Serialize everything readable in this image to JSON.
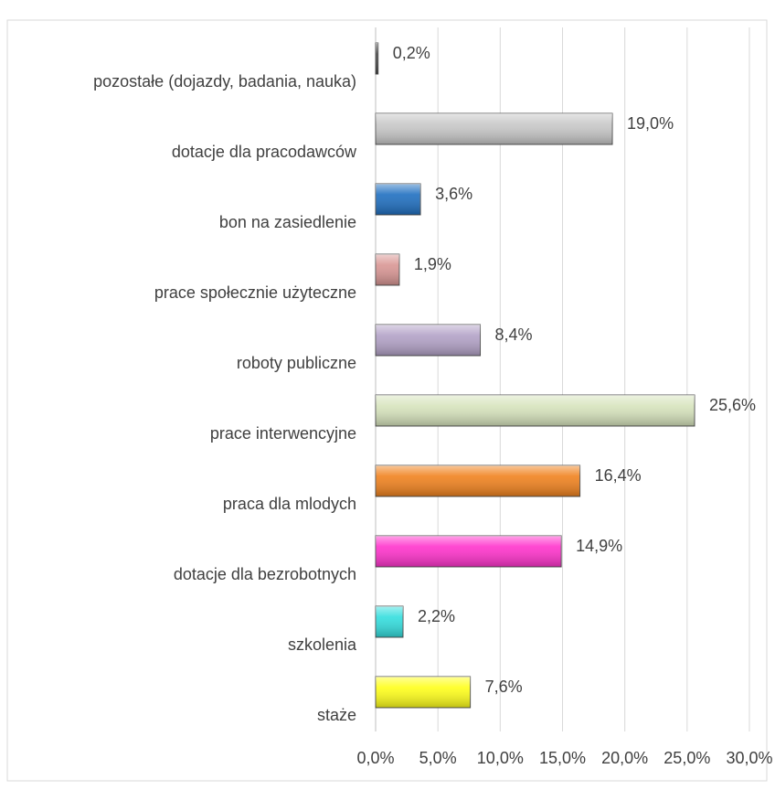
{
  "chart_data": {
    "type": "barh",
    "categories": [
      "pozostałe (dojazdy, badania, nauka)",
      "dotacje dla pracodawców",
      "bon na zasiedlenie",
      "prace społecznie użyteczne",
      "roboty publiczne",
      "prace  interwencyjne",
      "praca dla mlodych",
      "dotacje dla bezrobotnych",
      "szkolenia",
      "staże"
    ],
    "values": [
      0.2,
      19.0,
      3.6,
      1.9,
      8.4,
      25.6,
      16.4,
      14.9,
      2.2,
      7.6
    ],
    "value_labels": [
      "0,2%",
      "19,0%",
      "3,6%",
      "1,9%",
      "8,4%",
      "25,6%",
      "16,4%",
      "14,9%",
      "2,2%",
      "7,6%"
    ],
    "colors": [
      "#404040",
      "#c8c8c8",
      "#1f6fc0",
      "#d99694",
      "#b3a2c7",
      "#d7e4bd",
      "#f0821e",
      "#ff33cc",
      "#33dede",
      "#ffff1a"
    ],
    "xlim": [
      0,
      30
    ],
    "xticks": [
      {
        "value": 0,
        "label": "0,0%"
      },
      {
        "value": 5,
        "label": "5,0%"
      },
      {
        "value": 10,
        "label": "10,0%"
      },
      {
        "value": 15,
        "label": "15,0%"
      },
      {
        "value": 20,
        "label": "20,0%"
      },
      {
        "value": 25,
        "label": "25,0%"
      },
      {
        "value": 30,
        "label": "30,0%"
      }
    ],
    "grid": true
  }
}
